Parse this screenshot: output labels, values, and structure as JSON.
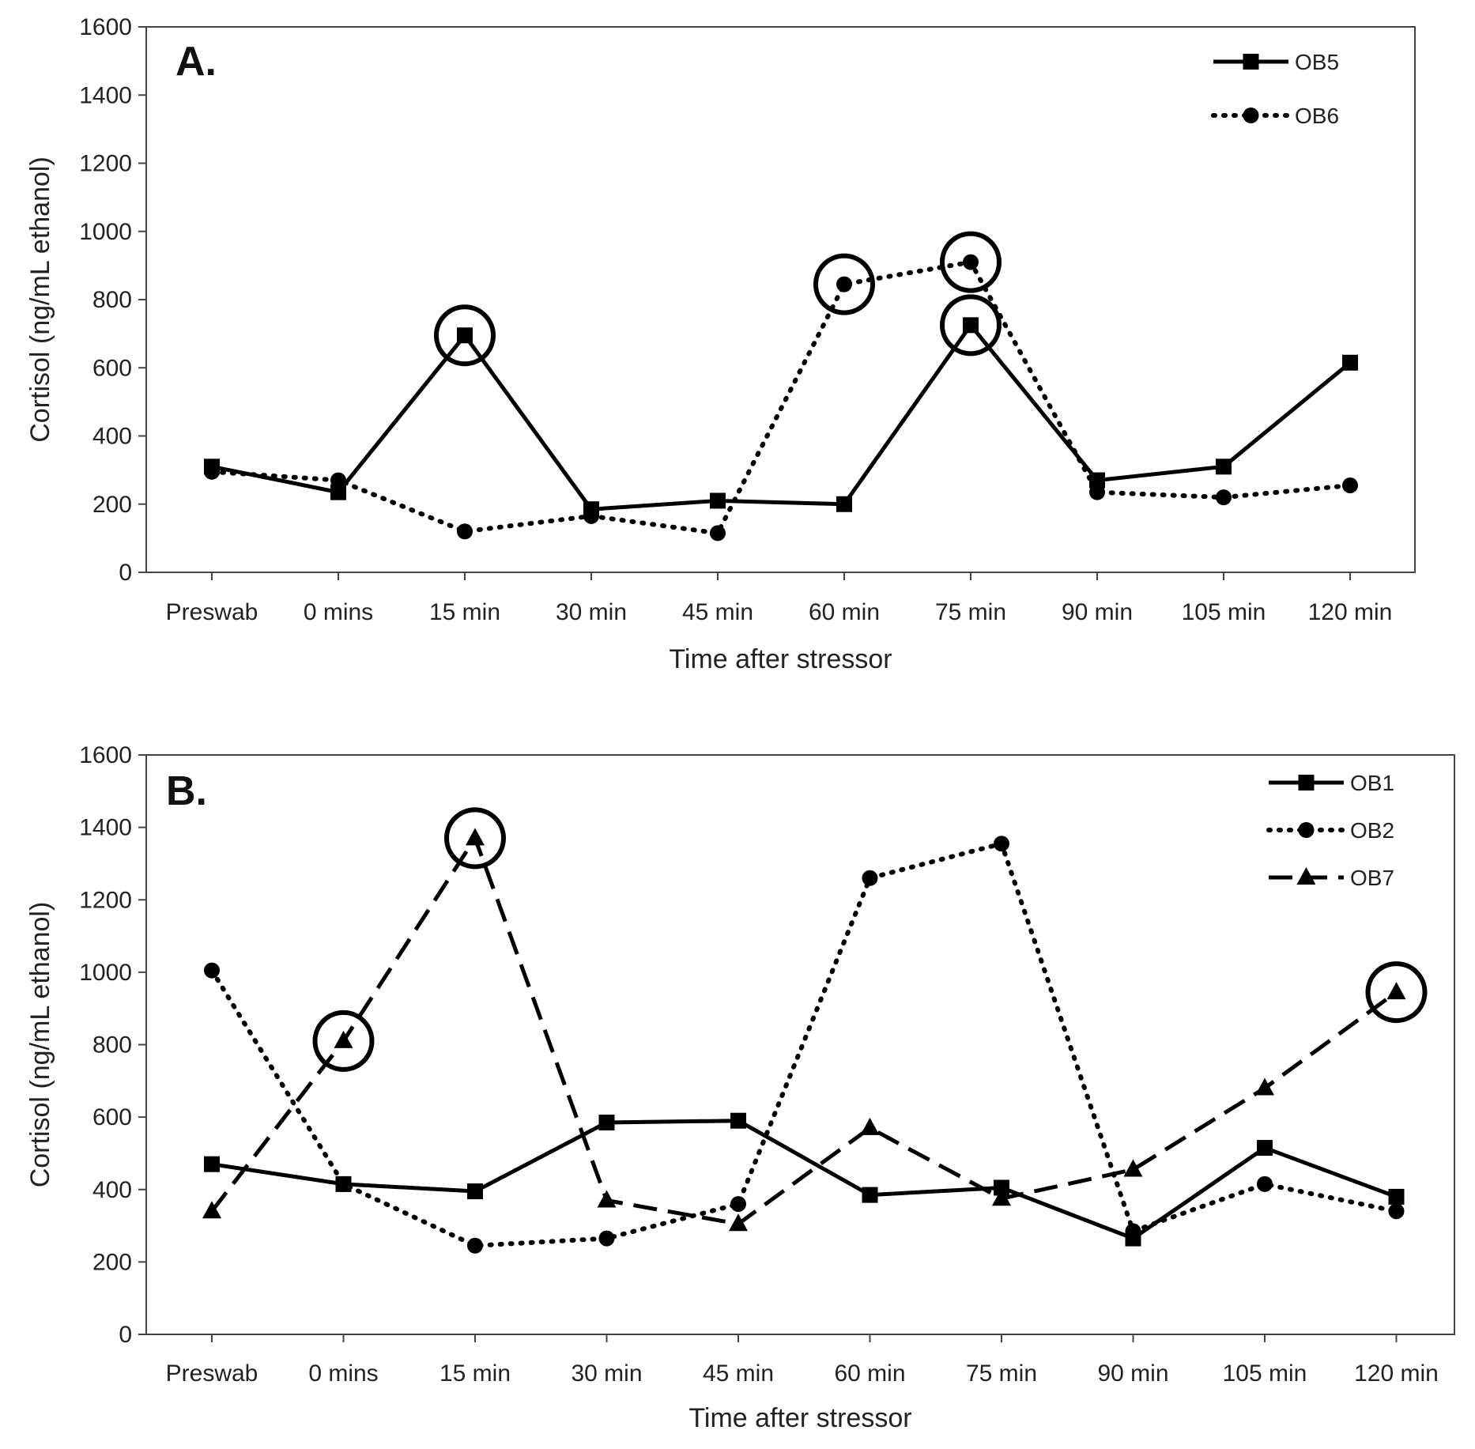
{
  "chart_data": [
    {
      "type": "line",
      "panel_label": "A.",
      "xlabel": "Time after stressor",
      "ylabel": "Cortisol (ng/mL ethanol)",
      "ylim": [
        0,
        1600
      ],
      "yticks": [
        "0",
        "200",
        "400",
        "600",
        "800",
        "1000",
        "1200",
        "1400",
        "1600"
      ],
      "categories": [
        "Preswab",
        "0 mins",
        "15 min",
        "30 min",
        "45 min",
        "60 min",
        "75 min",
        "90 min",
        "105 min",
        "120 min"
      ],
      "legend_position": "top-right",
      "series": [
        {
          "name": "OB5",
          "style": "solid",
          "marker": "square",
          "values": [
            310,
            235,
            695,
            185,
            210,
            200,
            725,
            270,
            310,
            615
          ],
          "circled": [
            2,
            6
          ]
        },
        {
          "name": "OB6",
          "style": "dotted",
          "marker": "circle",
          "values": [
            295,
            270,
            120,
            165,
            115,
            845,
            910,
            235,
            220,
            255
          ],
          "circled": [
            5,
            6
          ]
        }
      ]
    },
    {
      "type": "line",
      "panel_label": "B.",
      "xlabel": "Time after stressor",
      "ylabel": "Cortisol (ng/mL ethanol)",
      "ylim": [
        0,
        1600
      ],
      "yticks": [
        "0",
        "200",
        "400",
        "600",
        "800",
        "1000",
        "1200",
        "1400",
        "1600"
      ],
      "categories": [
        "Preswab",
        "0 mins",
        "15 min",
        "30 min",
        "45 min",
        "60 min",
        "75 min",
        "90 min",
        "105 min",
        "120 min"
      ],
      "legend_position": "top-right",
      "series": [
        {
          "name": "OB1",
          "style": "solid",
          "marker": "square",
          "values": [
            470,
            415,
            395,
            585,
            590,
            385,
            405,
            265,
            515,
            380
          ],
          "circled": []
        },
        {
          "name": "OB2",
          "style": "dotted",
          "marker": "circle",
          "values": [
            1005,
            415,
            245,
            265,
            360,
            1260,
            1355,
            285,
            415,
            340
          ],
          "circled": []
        },
        {
          "name": "OB7",
          "style": "dashed",
          "marker": "triangle",
          "values": [
            340,
            810,
            1370,
            370,
            305,
            570,
            375,
            455,
            680,
            945
          ],
          "circled": [
            1,
            2,
            9
          ]
        }
      ]
    }
  ]
}
